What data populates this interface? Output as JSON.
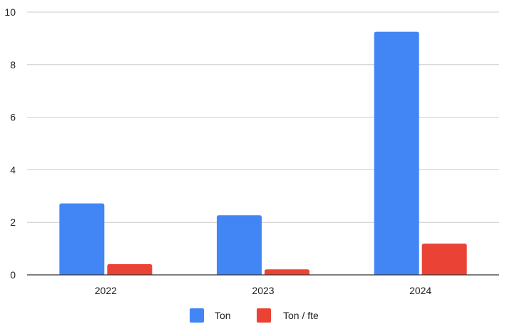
{
  "chart_data": {
    "type": "bar",
    "categories": [
      "2022",
      "2023",
      "2024"
    ],
    "series": [
      {
        "name": "Ton",
        "values": [
          2.72,
          2.27,
          9.25
        ],
        "color": "#4285f4"
      },
      {
        "name": "Ton / fte",
        "values": [
          0.41,
          0.21,
          1.19
        ],
        "color": "#ea4335"
      }
    ],
    "ylim": [
      0,
      10
    ],
    "yticks": [
      0,
      2,
      4,
      6,
      8,
      10
    ],
    "grid": true,
    "legend_position": "bottom"
  }
}
